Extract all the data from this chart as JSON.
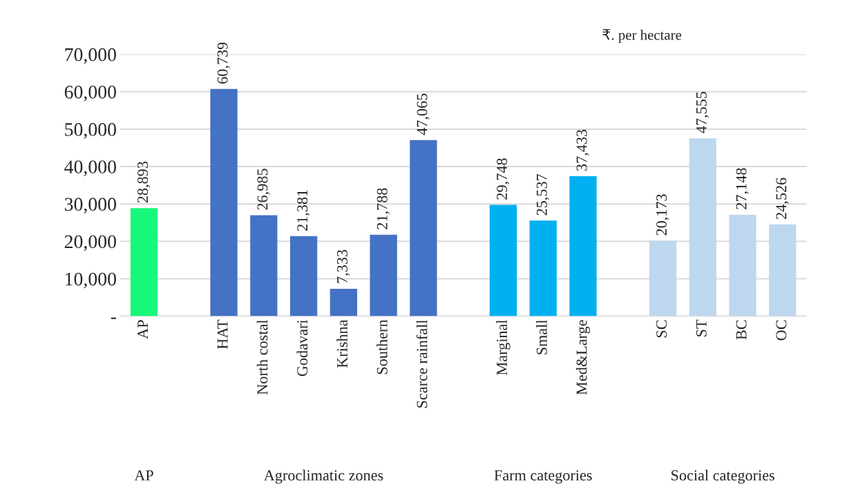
{
  "chart_data": {
    "type": "bar",
    "categories": [
      "AP",
      null,
      "HAT",
      "North costal",
      "Godavari",
      "Krishna",
      "Southern",
      "Scarce rainfall",
      null,
      "Marginal",
      "Small",
      "Med&Large",
      null,
      "SC",
      "ST",
      "BC",
      "OC"
    ],
    "values": [
      28893,
      null,
      60739,
      26985,
      21381,
      7333,
      21788,
      47065,
      null,
      29748,
      25537,
      37433,
      null,
      20173,
      47555,
      27148,
      24526
    ],
    "colors": [
      "#17f87a",
      null,
      "#4472c4",
      "#4472c4",
      "#4472c4",
      "#4472c4",
      "#4472c4",
      "#4472c4",
      null,
      "#00b0f0",
      "#00b0f0",
      "#00b0f0",
      null,
      "#bdd7ee",
      "#bdd7ee",
      "#bdd7ee",
      "#bdd7ee"
    ],
    "value_labels": [
      "28,893",
      null,
      "60,739",
      "26,985",
      "21,381",
      "7,333",
      "21,788",
      "47,065",
      null,
      "29,748",
      "25,537",
      "37,433",
      null,
      "20,173",
      "47,555",
      "27,148",
      "24,526"
    ],
    "ylim": [
      0,
      70000
    ],
    "yticks": [
      {
        "value": 0,
        "label": "-"
      },
      {
        "value": 10000,
        "label": "10,000"
      },
      {
        "value": 20000,
        "label": "20,000"
      },
      {
        "value": 30000,
        "label": "30,000"
      },
      {
        "value": 40000,
        "label": "40,000"
      },
      {
        "value": 50000,
        "label": "50,000"
      },
      {
        "value": 60000,
        "label": "60,000"
      },
      {
        "value": 70000,
        "label": "70,000"
      }
    ],
    "grid": "y",
    "annotations": [
      "₹. per hectare",
      "AP",
      "Agroclimatic zones",
      "Farm categories",
      "Social categories"
    ]
  }
}
